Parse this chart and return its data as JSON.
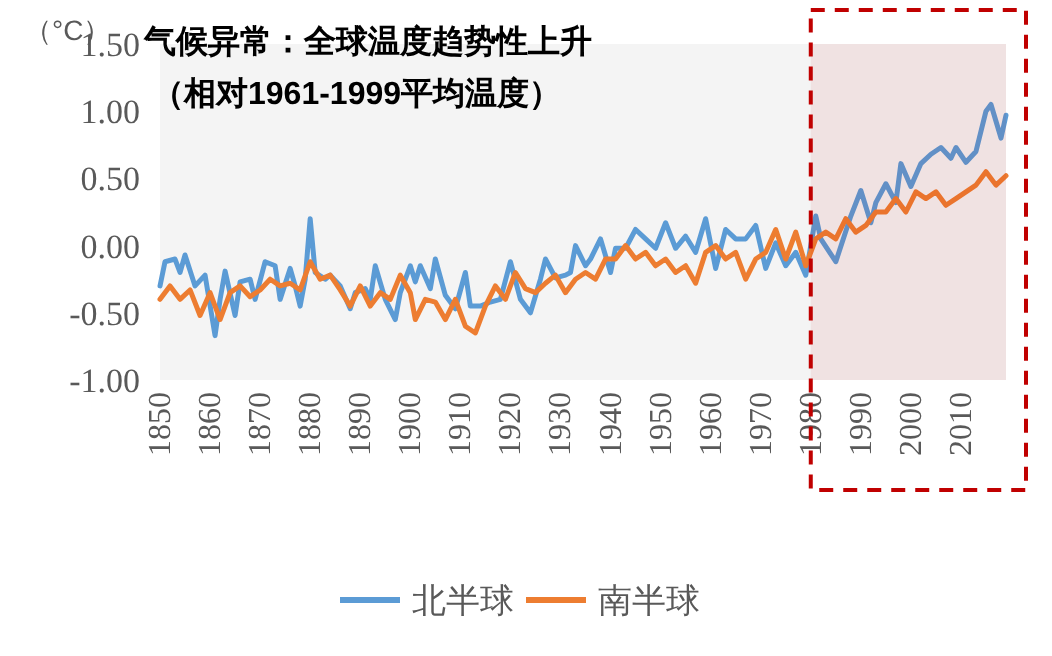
{
  "chart_data": {
    "type": "line",
    "title": "气候异常：全球温度趋势性上升",
    "subtitle": "（相对1961-1999平均温度）",
    "ylabel": "（°C）",
    "xlim": [
      1850,
      2019
    ],
    "xticks": [
      1850,
      1860,
      1870,
      1880,
      1890,
      1900,
      1910,
      1920,
      1930,
      1940,
      1950,
      1960,
      1970,
      1980,
      1990,
      2000,
      2010
    ],
    "ylim": [
      -1,
      1.5
    ],
    "yticks": [
      {
        "value": -1,
        "label": "-1.00"
      },
      {
        "value": -0.5,
        "label": "-0.50"
      },
      {
        "value": 0,
        "label": "0.00"
      },
      {
        "value": 0.5,
        "label": "0.50"
      },
      {
        "value": 1,
        "label": "1.00"
      },
      {
        "value": 1.5,
        "label": "1.50"
      }
    ],
    "grid": false,
    "legend": "bottom",
    "line_style": "solid",
    "marker": "none",
    "bands": [
      {
        "axis": "x",
        "from": 1980,
        "to": 2019,
        "color": "#c00000"
      }
    ],
    "series": [
      {
        "name": "北半球",
        "color": "#5b9bd5",
        "x": [
          1850,
          1851,
          1853,
          1854,
          1855,
          1857,
          1859,
          1861,
          1862,
          1863,
          1865,
          1866,
          1868,
          1869,
          1871,
          1873,
          1874,
          1876,
          1877,
          1878,
          1879,
          1880,
          1881,
          1883,
          1884,
          1886,
          1888,
          1889,
          1891,
          1892,
          1893,
          1895,
          1897,
          1898,
          1900,
          1901,
          1902,
          1904,
          1905,
          1907,
          1909,
          1911,
          1912,
          1914,
          1916,
          1918,
          1920,
          1922,
          1924,
          1926,
          1927,
          1929,
          1931,
          1932,
          1933,
          1935,
          1936,
          1938,
          1940,
          1941,
          1943,
          1945,
          1947,
          1949,
          1951,
          1953,
          1955,
          1957,
          1959,
          1961,
          1963,
          1965,
          1967,
          1969,
          1971,
          1973,
          1975,
          1977,
          1979,
          1981,
          1982,
          1985,
          1988,
          1990,
          1992,
          1993,
          1995,
          1997,
          1998,
          2000,
          2002,
          2004,
          2006,
          2008,
          2009,
          2011,
          2013,
          2015,
          2016,
          2018,
          2019
        ],
        "values": [
          -0.3,
          -0.12,
          -0.1,
          -0.2,
          -0.07,
          -0.3,
          -0.22,
          -0.67,
          -0.4,
          -0.19,
          -0.52,
          -0.27,
          -0.25,
          -0.4,
          -0.12,
          -0.15,
          -0.4,
          -0.17,
          -0.3,
          -0.45,
          -0.25,
          0.2,
          -0.2,
          -0.25,
          -0.22,
          -0.3,
          -0.47,
          -0.35,
          -0.32,
          -0.4,
          -0.15,
          -0.4,
          -0.55,
          -0.35,
          -0.15,
          -0.27,
          -0.15,
          -0.32,
          -0.1,
          -0.37,
          -0.47,
          -0.2,
          -0.45,
          -0.45,
          -0.42,
          -0.4,
          -0.12,
          -0.4,
          -0.5,
          -0.25,
          -0.1,
          -0.24,
          -0.22,
          -0.2,
          0.0,
          -0.15,
          -0.1,
          0.05,
          -0.2,
          -0.02,
          -0.02,
          0.12,
          0.05,
          -0.02,
          0.17,
          -0.02,
          0.07,
          -0.05,
          0.2,
          -0.17,
          0.12,
          0.05,
          0.05,
          0.15,
          -0.17,
          0.02,
          -0.15,
          -0.05,
          -0.22,
          0.22,
          0.05,
          -0.12,
          0.22,
          0.41,
          0.17,
          0.32,
          0.46,
          0.32,
          0.61,
          0.44,
          0.61,
          0.68,
          0.73,
          0.65,
          0.73,
          0.62,
          0.7,
          1.0,
          1.05,
          0.8,
          0.97
        ]
      },
      {
        "name": "南半球",
        "color": "#ed7d31",
        "x": [
          1850,
          1852,
          1854,
          1856,
          1858,
          1860,
          1862,
          1864,
          1866,
          1868,
          1870,
          1872,
          1874,
          1876,
          1878,
          1880,
          1882,
          1884,
          1886,
          1888,
          1890,
          1892,
          1894,
          1896,
          1898,
          1900,
          1901,
          1903,
          1905,
          1907,
          1909,
          1911,
          1913,
          1915,
          1917,
          1919,
          1921,
          1923,
          1925,
          1927,
          1929,
          1931,
          1933,
          1935,
          1937,
          1939,
          1941,
          1943,
          1945,
          1947,
          1949,
          1951,
          1953,
          1955,
          1957,
          1959,
          1961,
          1963,
          1965,
          1967,
          1969,
          1971,
          1973,
          1975,
          1977,
          1979,
          1981,
          1983,
          1985,
          1987,
          1989,
          1991,
          1993,
          1995,
          1997,
          1999,
          2001,
          2003,
          2005,
          2007,
          2009,
          2011,
          2013,
          2015,
          2017,
          2019
        ],
        "values": [
          -0.4,
          -0.3,
          -0.4,
          -0.33,
          -0.52,
          -0.35,
          -0.55,
          -0.35,
          -0.3,
          -0.38,
          -0.33,
          -0.25,
          -0.3,
          -0.28,
          -0.33,
          -0.12,
          -0.25,
          -0.22,
          -0.33,
          -0.45,
          -0.3,
          -0.45,
          -0.35,
          -0.4,
          -0.22,
          -0.35,
          -0.55,
          -0.4,
          -0.42,
          -0.55,
          -0.4,
          -0.6,
          -0.65,
          -0.45,
          -0.3,
          -0.4,
          -0.2,
          -0.32,
          -0.35,
          -0.28,
          -0.22,
          -0.35,
          -0.25,
          -0.2,
          -0.25,
          -0.1,
          -0.1,
          0.0,
          -0.1,
          -0.05,
          -0.15,
          -0.1,
          -0.2,
          -0.15,
          -0.28,
          -0.05,
          0.0,
          -0.1,
          -0.05,
          -0.25,
          -0.1,
          -0.05,
          0.12,
          -0.1,
          0.1,
          -0.15,
          0.05,
          0.1,
          0.05,
          0.2,
          0.1,
          0.15,
          0.25,
          0.25,
          0.35,
          0.25,
          0.4,
          0.35,
          0.4,
          0.3,
          0.35,
          0.4,
          0.45,
          0.55,
          0.45,
          0.52
        ]
      }
    ]
  }
}
